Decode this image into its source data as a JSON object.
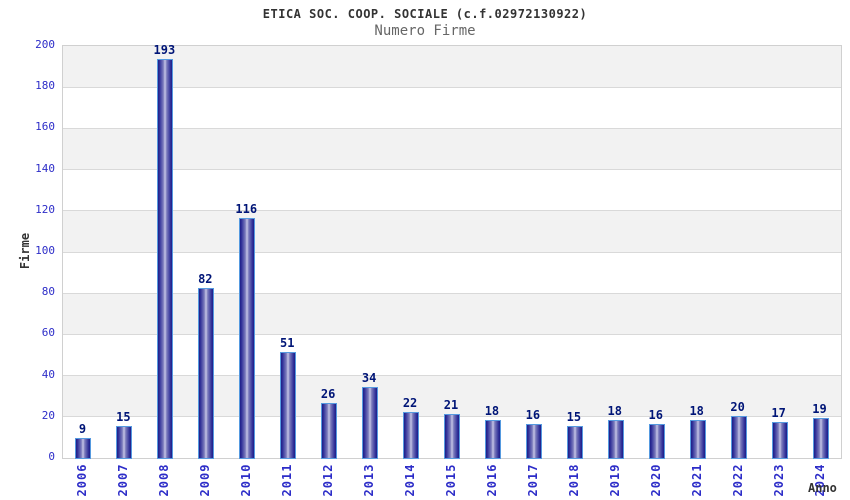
{
  "header": {
    "title": "ETICA SOC. COOP. SOCIALE (c.f.02972130922)",
    "subtitle": "Numero Firme"
  },
  "chart_data": {
    "type": "bar",
    "title": "ETICA SOC. COOP. SOCIALE (c.f.02972130922)",
    "subtitle": "Numero Firme",
    "xlabel": "Anno",
    "ylabel": "Firme",
    "categories": [
      "2006",
      "2007",
      "2008",
      "2009",
      "2010",
      "2011",
      "2012",
      "2013",
      "2014",
      "2015",
      "2016",
      "2017",
      "2018",
      "2019",
      "2020",
      "2021",
      "2022",
      "2023",
      "2024"
    ],
    "values": [
      9,
      15,
      193,
      82,
      116,
      51,
      26,
      34,
      22,
      21,
      18,
      16,
      15,
      18,
      16,
      18,
      20,
      17,
      19
    ],
    "ylim": [
      0,
      200
    ],
    "ytick_step": 20,
    "grid": true,
    "legend": "none",
    "band_colors": [
      "#ffffff",
      "#f2f2f2"
    ],
    "colors": {
      "bar_border": "#559ae0",
      "bar_edge": "#1d1d88",
      "bar_center": "#c6c6e6",
      "tick_label": "#2d2dc8",
      "value_label": "#001577",
      "gridline": "#d9d9d9",
      "axis_title": "#333333",
      "title": "#333333",
      "subtitle": "#666666"
    }
  }
}
